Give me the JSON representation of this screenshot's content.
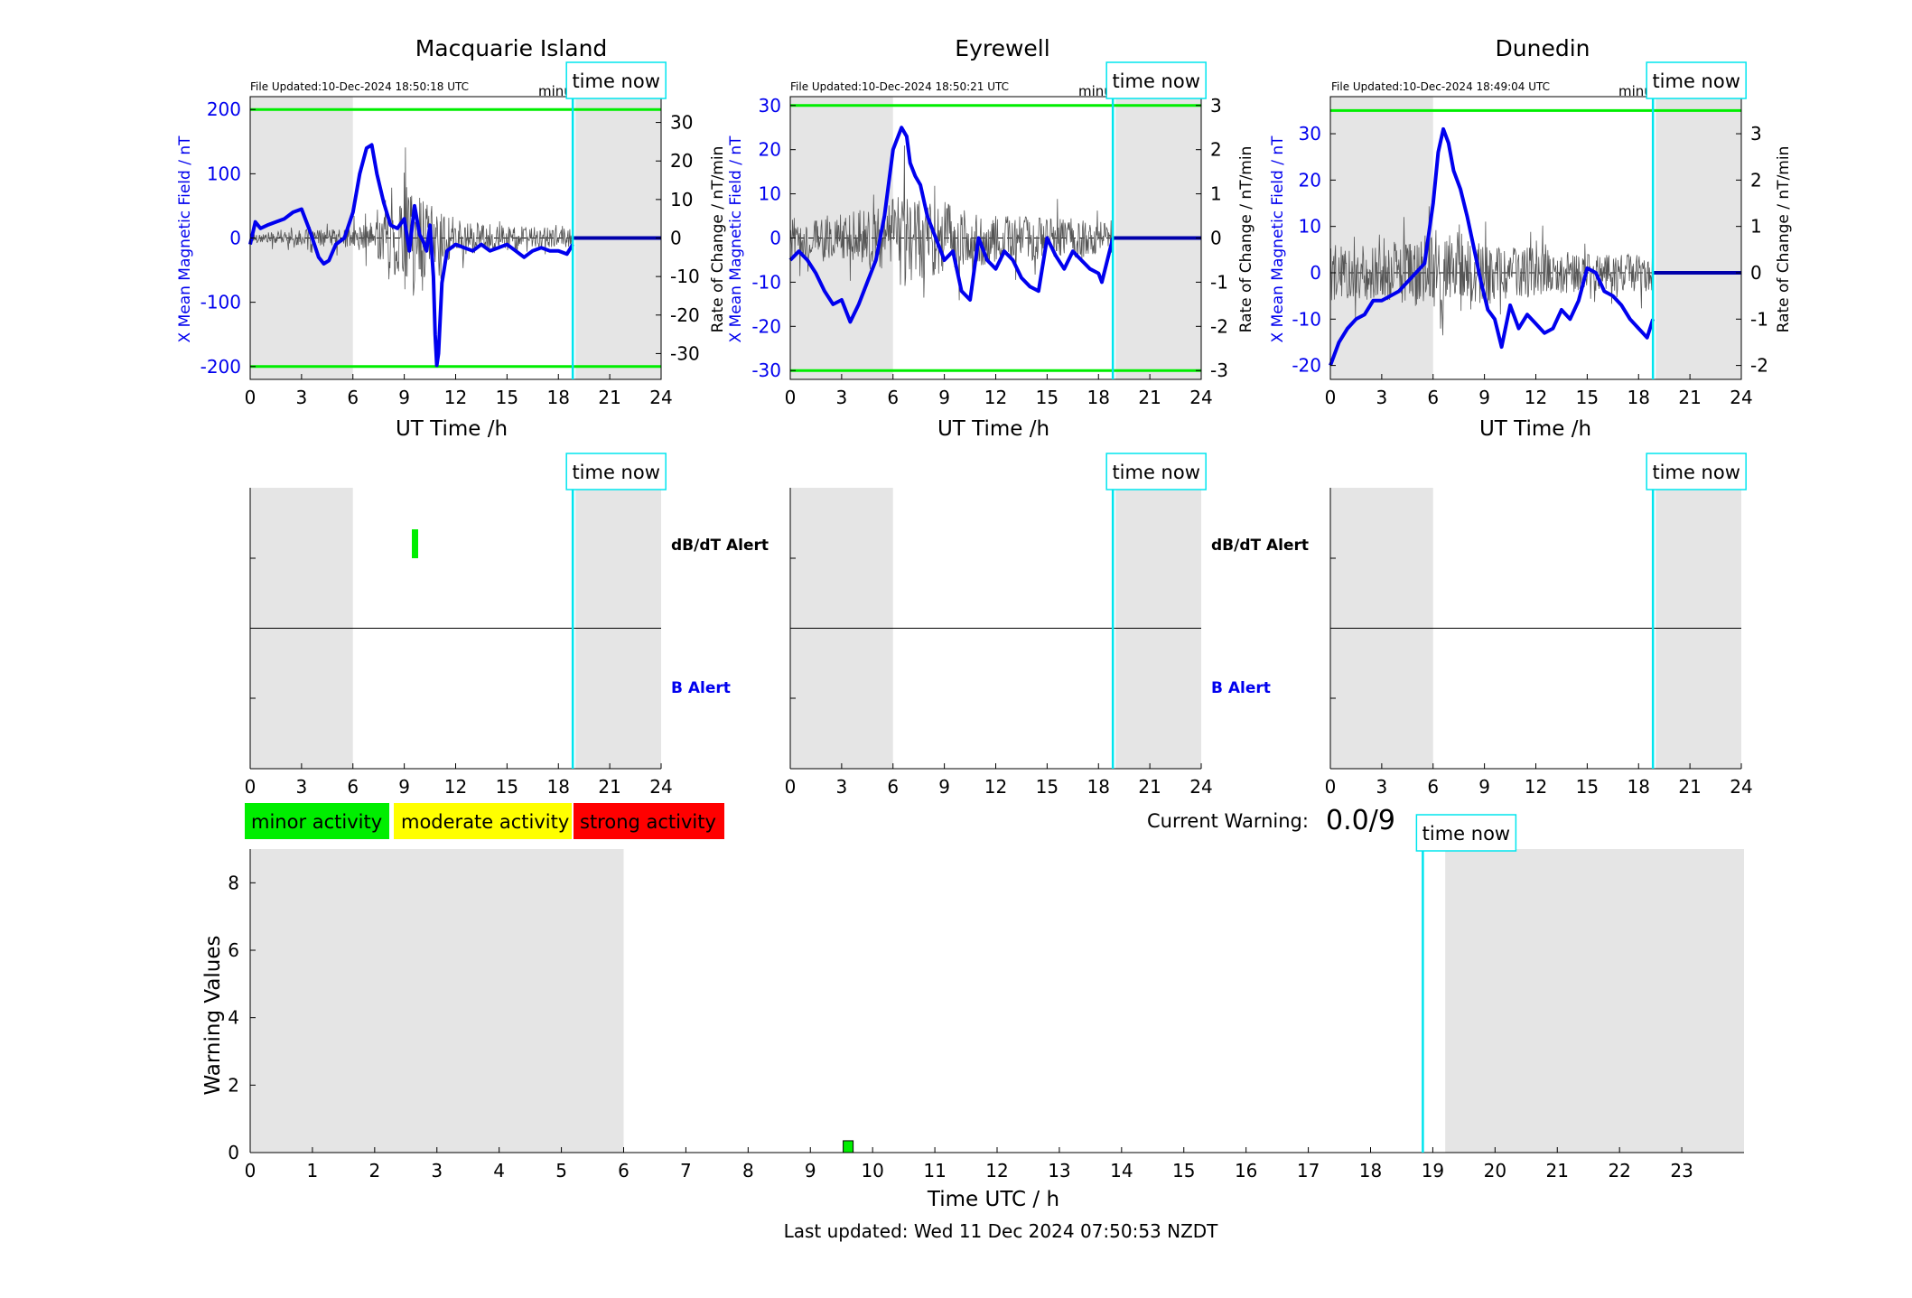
{
  "figure": {
    "time_now_label": "time now",
    "time_now_hour": 18.84,
    "night_shading": [
      [
        0,
        6
      ],
      [
        19,
        24
      ]
    ],
    "footer": "Last updated: Wed 11 Dec 2024 07:50:53 NZDT",
    "colors": {
      "field_line": "#0000ee",
      "rate_line": "#000000",
      "threshold_line": "#00ee00",
      "now_line": "#00e5ee",
      "night_shade": "#e5e5e5"
    }
  },
  "stations": [
    {
      "name": "Macquarie Island",
      "file_updated": "File Updated:10-Dec-2024 18:50:18 UTC",
      "resolution": "minute resolution",
      "ylabel_left": "X Mean Magnetic Field / nT",
      "ylabel_right": "Rate of Change / nT/min",
      "xlabel": "UT Time /h"
    },
    {
      "name": "Eyrewell",
      "file_updated": "File Updated:10-Dec-2024 18:50:21 UTC",
      "resolution": "minute resolution",
      "ylabel_left": "X Mean Magnetic Field / nT",
      "ylabel_right": "Rate of Change / nT/min",
      "xlabel": "UT Time /h"
    },
    {
      "name": "Dunedin",
      "file_updated": "File Updated:10-Dec-2024 18:49:04 UTC",
      "resolution": "minute resolution",
      "ylabel_left": "X Mean Magnetic Field / nT",
      "ylabel_right": "Rate of Change / nT/min",
      "xlabel": "UT Time /h"
    }
  ],
  "alerts": {
    "dbdt_label": "dB/dT Alert",
    "b_label": "B Alert"
  },
  "legend": {
    "minor": "minor activity",
    "moderate": "moderate activity",
    "strong": "strong activity",
    "minor_color": "#00ee00",
    "moderate_color": "#ffff00",
    "strong_color": "#ff0000"
  },
  "warning": {
    "label": "Current Warning:",
    "value": "0.0/9"
  },
  "chart_data": [
    {
      "type": "line",
      "station": "Macquarie Island",
      "xlim": [
        0,
        24
      ],
      "xticks": [
        0,
        3,
        6,
        9,
        12,
        15,
        18,
        21,
        24
      ],
      "ylim_left": [
        -220,
        220
      ],
      "yticks_left": [
        -200,
        -100,
        0,
        100,
        200
      ],
      "ylim_right": [
        -36.7,
        36.7
      ],
      "yticks_right": [
        -30,
        -20,
        -10,
        0,
        10,
        20,
        30
      ],
      "thresholds_left": [
        200,
        -200
      ],
      "x": [
        0,
        0.3,
        0.6,
        1,
        1.5,
        2,
        2.5,
        3,
        3.5,
        4,
        4.3,
        4.6,
        5,
        5.5,
        6,
        6.4,
        6.8,
        7.1,
        7.4,
        7.8,
        8.2,
        8.6,
        9,
        9.3,
        9.6,
        9.9,
        10.1,
        10.3,
        10.5,
        10.7,
        10.8,
        10.9,
        11,
        11.2,
        11.5,
        12,
        12.5,
        13,
        13.5,
        14,
        14.5,
        15,
        15.5,
        16,
        16.5,
        17,
        17.5,
        18,
        18.5,
        18.84
      ],
      "y": [
        -10,
        25,
        15,
        20,
        25,
        30,
        40,
        45,
        10,
        -30,
        -40,
        -35,
        -10,
        0,
        40,
        100,
        140,
        145,
        100,
        55,
        20,
        15,
        30,
        -20,
        50,
        5,
        -5,
        -20,
        20,
        -60,
        -150,
        -198,
        -180,
        -70,
        -20,
        -10,
        -15,
        -20,
        -10,
        -20,
        -15,
        -10,
        -20,
        -30,
        -20,
        -15,
        -20,
        -20,
        -25,
        -10
      ],
      "after_now_value": 0,
      "rate_envelope": [
        [
          0,
          1.5
        ],
        [
          3,
          2.5
        ],
        [
          5.5,
          3
        ],
        [
          7,
          5
        ],
        [
          8,
          9
        ],
        [
          9,
          18
        ],
        [
          10,
          14
        ],
        [
          11,
          9
        ],
        [
          13,
          5
        ],
        [
          15,
          4
        ],
        [
          18.84,
          3
        ]
      ]
    },
    {
      "type": "line",
      "station": "Eyrewell",
      "xlim": [
        0,
        24
      ],
      "xticks": [
        0,
        3,
        6,
        9,
        12,
        15,
        18,
        21,
        24
      ],
      "ylim_left": [
        -32,
        32
      ],
      "yticks_left": [
        -30,
        -20,
        -10,
        0,
        10,
        20,
        30
      ],
      "ylim_right": [
        -3.2,
        3.2
      ],
      "yticks_right": [
        -3,
        -2,
        -1,
        0,
        1,
        2,
        3
      ],
      "thresholds_left": [
        30,
        -30
      ],
      "x": [
        0,
        0.5,
        1,
        1.5,
        2,
        2.5,
        3,
        3.5,
        4,
        4.5,
        5,
        5.5,
        6,
        6.2,
        6.5,
        6.8,
        7,
        7.3,
        7.6,
        8,
        8.5,
        9,
        9.5,
        10,
        10.5,
        11,
        11.5,
        12,
        12.5,
        13,
        13.5,
        14,
        14.5,
        15,
        15.5,
        16,
        16.5,
        17,
        17.5,
        18,
        18.2,
        18.84
      ],
      "y": [
        -5,
        -3,
        -5,
        -8,
        -12,
        -15,
        -14,
        -19,
        -15,
        -10,
        -5,
        5,
        20,
        22,
        25,
        23,
        17,
        14,
        12,
        5,
        0,
        -5,
        -3,
        -12,
        -14,
        0,
        -5,
        -7,
        -3,
        -5,
        -9,
        -11,
        -12,
        0,
        -4,
        -7,
        -3,
        -5,
        -7,
        -8,
        -10,
        0
      ],
      "after_now_value": 0,
      "rate_envelope": [
        [
          0,
          0.6
        ],
        [
          3,
          0.7
        ],
        [
          5.5,
          0.9
        ],
        [
          6.5,
          1.4
        ],
        [
          7.5,
          1.2
        ],
        [
          9,
          1.0
        ],
        [
          12,
          0.7
        ],
        [
          15,
          0.6
        ],
        [
          18.2,
          0.5
        ]
      ]
    },
    {
      "type": "line",
      "station": "Dunedin",
      "xlim": [
        0,
        24
      ],
      "xticks": [
        0,
        3,
        6,
        9,
        12,
        15,
        18,
        21,
        24
      ],
      "ylim_left": [
        -23,
        38
      ],
      "yticks_left": [
        -20,
        -10,
        0,
        10,
        20,
        30
      ],
      "ylim_right": [
        -2.3,
        3.8
      ],
      "yticks_right": [
        -2,
        -1,
        0,
        1,
        2,
        3
      ],
      "thresholds_left": [
        35
      ],
      "x": [
        0,
        0.5,
        1,
        1.5,
        2,
        2.5,
        3,
        3.5,
        4,
        4.5,
        5,
        5.5,
        6,
        6.3,
        6.6,
        6.9,
        7.2,
        7.6,
        8,
        8.4,
        8.8,
        9.2,
        9.6,
        10,
        10.5,
        11,
        11.5,
        12,
        12.5,
        13,
        13.5,
        14,
        14.5,
        15,
        15.5,
        16,
        16.5,
        17,
        17.5,
        18,
        18.5,
        18.84
      ],
      "y": [
        -20,
        -15,
        -12,
        -10,
        -9,
        -6,
        -6,
        -5,
        -4,
        -2,
        0,
        2,
        15,
        26,
        31,
        28,
        22,
        18,
        12,
        5,
        -2,
        -8,
        -10,
        -16,
        -7,
        -12,
        -9,
        -11,
        -13,
        -12,
        -8,
        -10,
        -6,
        1,
        0,
        -4,
        -5,
        -7,
        -10,
        -12,
        -14,
        -10
      ],
      "after_now_value": 0,
      "rate_envelope": [
        [
          0,
          0.8
        ],
        [
          3,
          0.7
        ],
        [
          5.5,
          1.0
        ],
        [
          7,
          1.3
        ],
        [
          8,
          1.1
        ],
        [
          10,
          0.8
        ],
        [
          13,
          0.6
        ],
        [
          16,
          0.5
        ],
        [
          18.84,
          0.5
        ]
      ]
    },
    {
      "type": "bar",
      "title": "Warning Values",
      "xlabel": "Time UTC / h",
      "ylabel": "Warning Values",
      "xlim": [
        0,
        24
      ],
      "xticks": [
        0,
        1,
        2,
        3,
        4,
        5,
        6,
        7,
        8,
        9,
        10,
        11,
        12,
        13,
        14,
        15,
        16,
        17,
        18,
        19,
        20,
        21,
        22,
        23
      ],
      "ylim": [
        0,
        9
      ],
      "yticks": [
        0,
        2,
        4,
        6,
        8
      ],
      "night_shading": [
        [
          0,
          6
        ],
        [
          19.2,
          24
        ]
      ],
      "time_now_hour": 18.84,
      "bars": [
        {
          "x": 9.6,
          "value": 0.35,
          "level": "minor"
        }
      ]
    }
  ],
  "alert_marks": [
    {
      "station": "Macquarie Island",
      "row": "dB/dT",
      "hour": 9.6,
      "level": "minor"
    }
  ]
}
